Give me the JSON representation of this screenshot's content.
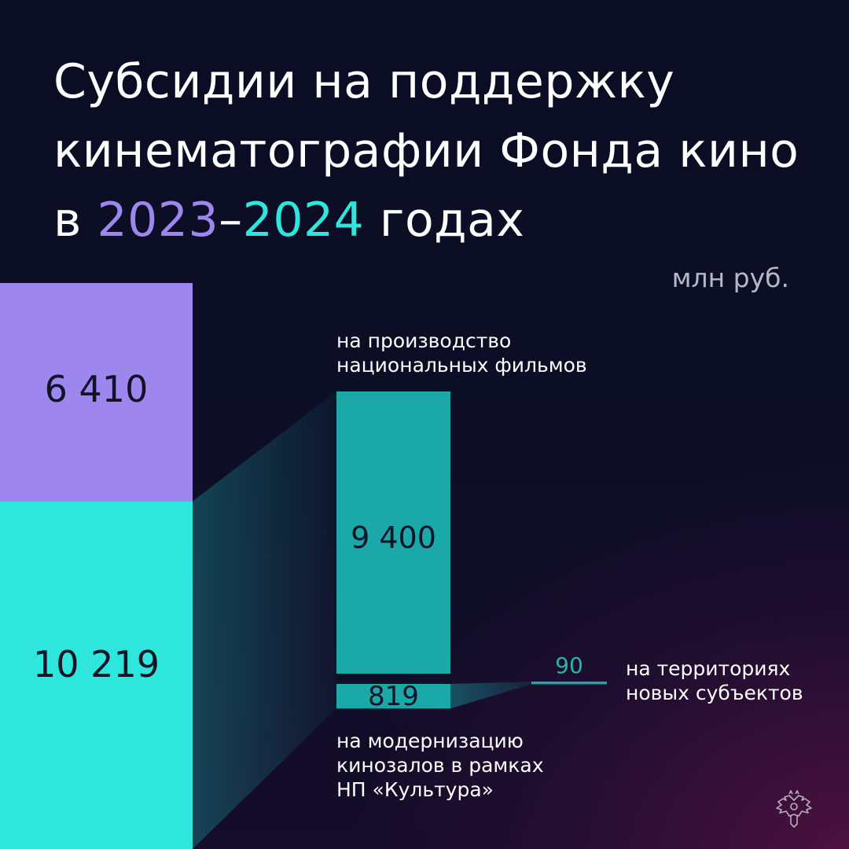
{
  "title": {
    "line1": "Субсидии на поддержку",
    "line2": "кинематографии Фонда кино",
    "prefix": "в ",
    "year_start": "2023",
    "dash": "–",
    "year_end": "2024",
    "suffix": " годах"
  },
  "unit": "млн руб.",
  "colors": {
    "year_2023": "#9e86ef",
    "year_2024": "#2fe6dc",
    "breakdown": "#1ba8a8"
  },
  "chart_data": {
    "type": "bar",
    "unit": "млн руб.",
    "stacked_total": [
      {
        "category": "2023",
        "value": 6410,
        "label": "6 410"
      },
      {
        "category": "2024",
        "value": 10219,
        "label": "10 219"
      }
    ],
    "breakdown_2024": [
      {
        "name": "на производство национальных фильмов",
        "value": 9400,
        "label": "9 400"
      },
      {
        "name": "на модернизацию кинозалов в рамках НП «Культура»",
        "value": 819,
        "label": "819"
      }
    ],
    "sub_breakdown": [
      {
        "name": "на территориях новых субъектов",
        "value": 90,
        "label": "90"
      }
    ]
  },
  "labels": {
    "production_line1": "на производство",
    "production_line2": "национальных фильмов",
    "modernization_line1": "на модернизацию",
    "modernization_line2": "кинозалов в рамках",
    "modernization_line3": "НП «Культура»",
    "new_regions_line1": "на территориях",
    "new_regions_line2": "новых субъектов"
  },
  "emblem": "double-headed-eagle-icon"
}
